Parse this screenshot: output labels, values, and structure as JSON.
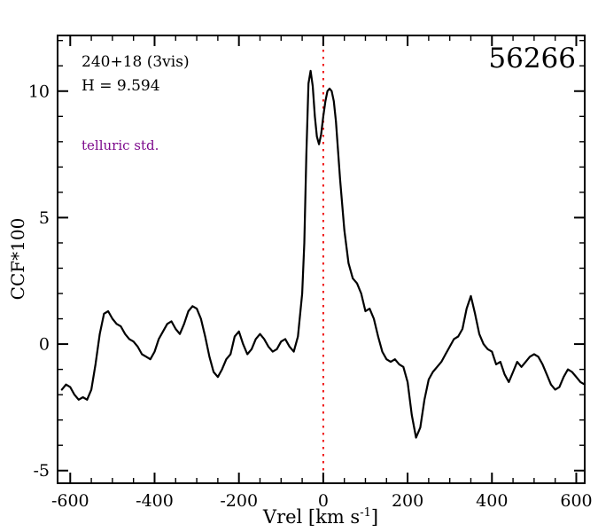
{
  "annotations": {
    "object_id": "240+18 (3vis)",
    "h_magnitude": "H = 9.594",
    "telluric_note": "telluric std.",
    "mjd_label": "56266",
    "note_color": "#7d0a8c"
  },
  "axis_labels": {
    "x_main": "Vrel [km s",
    "x_sup": "-1",
    "x_close": "]"
  },
  "colors": {
    "curve": "#000000",
    "frame": "#000000",
    "reference_line": "#ee1111"
  },
  "chart_data": {
    "type": "line",
    "title": "",
    "xlabel": "Vrel [km s^-1]",
    "ylabel": "CCF*100",
    "xlim": [
      -630,
      620
    ],
    "ylim": [
      -5.5,
      12.2
    ],
    "x_major_ticks": [
      -600,
      -400,
      -200,
      0,
      200,
      400,
      600
    ],
    "x_minor_step": 50,
    "y_major_ticks": [
      -5,
      0,
      5,
      10
    ],
    "y_minor_step": 1,
    "grid": false,
    "legend": false,
    "reference_line": {
      "x": 0,
      "color": "#ee1111",
      "style": "dotted"
    },
    "series": [
      {
        "name": "CCF",
        "color": "#000000",
        "x": [
          -620,
          -610,
          -600,
          -590,
          -580,
          -570,
          -560,
          -550,
          -540,
          -530,
          -520,
          -510,
          -500,
          -490,
          -480,
          -470,
          -460,
          -450,
          -440,
          -430,
          -420,
          -410,
          -400,
          -390,
          -380,
          -370,
          -360,
          -350,
          -340,
          -330,
          -320,
          -310,
          -300,
          -290,
          -280,
          -270,
          -260,
          -250,
          -240,
          -230,
          -220,
          -210,
          -200,
          -190,
          -180,
          -170,
          -160,
          -150,
          -140,
          -130,
          -120,
          -110,
          -100,
          -90,
          -80,
          -70,
          -60,
          -50,
          -45,
          -40,
          -35,
          -30,
          -25,
          -20,
          -15,
          -10,
          -5,
          0,
          5,
          10,
          15,
          20,
          25,
          30,
          40,
          50,
          60,
          70,
          80,
          90,
          100,
          110,
          120,
          130,
          140,
          150,
          160,
          170,
          180,
          190,
          200,
          210,
          220,
          230,
          240,
          250,
          260,
          270,
          280,
          290,
          300,
          310,
          320,
          330,
          340,
          350,
          360,
          370,
          380,
          390,
          400,
          410,
          420,
          430,
          440,
          450,
          460,
          470,
          480,
          490,
          500,
          510,
          520,
          530,
          540,
          550,
          560,
          570,
          580,
          590,
          600,
          610,
          620
        ],
        "y": [
          -1.8,
          -1.6,
          -1.7,
          -2.0,
          -2.2,
          -2.1,
          -2.2,
          -1.8,
          -0.8,
          0.4,
          1.2,
          1.3,
          1.0,
          0.8,
          0.7,
          0.4,
          0.2,
          0.1,
          -0.1,
          -0.4,
          -0.5,
          -0.6,
          -0.3,
          0.2,
          0.5,
          0.8,
          0.9,
          0.6,
          0.4,
          0.8,
          1.3,
          1.5,
          1.4,
          1.0,
          0.3,
          -0.5,
          -1.1,
          -1.3,
          -1.0,
          -0.6,
          -0.4,
          0.3,
          0.5,
          0.0,
          -0.4,
          -0.2,
          0.2,
          0.4,
          0.2,
          -0.1,
          -0.3,
          -0.2,
          0.1,
          0.2,
          -0.1,
          -0.3,
          0.3,
          2.0,
          4.0,
          7.5,
          10.3,
          10.8,
          10.2,
          9.0,
          8.2,
          7.9,
          8.3,
          9.0,
          9.6,
          10.0,
          10.1,
          10.0,
          9.6,
          8.8,
          6.5,
          4.5,
          3.2,
          2.6,
          2.4,
          2.0,
          1.3,
          1.4,
          1.0,
          0.3,
          -0.3,
          -0.6,
          -0.7,
          -0.6,
          -0.8,
          -0.9,
          -1.5,
          -2.8,
          -3.7,
          -3.3,
          -2.2,
          -1.4,
          -1.1,
          -0.9,
          -0.7,
          -0.4,
          -0.1,
          0.2,
          0.3,
          0.6,
          1.4,
          1.9,
          1.2,
          0.4,
          0.0,
          -0.2,
          -0.3,
          -0.8,
          -0.7,
          -1.2,
          -1.5,
          -1.1,
          -0.7,
          -0.9,
          -0.7,
          -0.5,
          -0.4,
          -0.5,
          -0.8,
          -1.2,
          -1.6,
          -1.8,
          -1.7,
          -1.3,
          -1.0,
          -1.1,
          -1.3,
          -1.5,
          -1.6
        ]
      }
    ]
  }
}
